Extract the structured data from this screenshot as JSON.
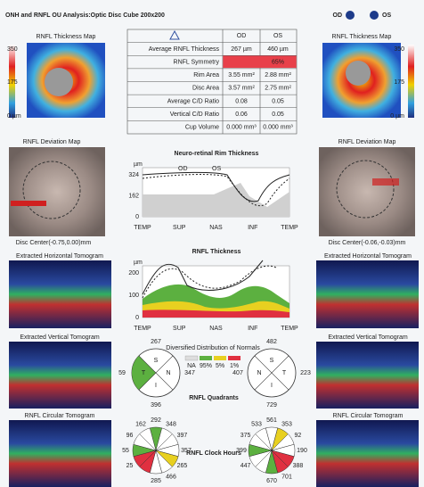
{
  "header": {
    "title": "ONH and RNFL OU Analysis:Optic Disc Cube 200x200",
    "od": "OD",
    "os": "OS"
  },
  "thickness_map": {
    "title": "RNFL Thickness Map",
    "scale": [
      "350",
      "175",
      "0 µm"
    ]
  },
  "table": {
    "columns": [
      "OD",
      "OS"
    ],
    "rows": [
      [
        "Average RNFL Thickness",
        "267 µm",
        "460 µm"
      ],
      [
        "RNFL Symmetry",
        "65%"
      ],
      [
        "Rim Area",
        "3.55 mm²",
        "2.88 mm²"
      ],
      [
        "Disc Area",
        "3.57 mm²",
        "2.75 mm²"
      ],
      [
        "Average C/D Ratio",
        "0.08",
        "0.05"
      ],
      [
        "Vertical C/D Ratio",
        "0.06",
        "0.05"
      ],
      [
        "Cup Volume",
        "0.000 mm³",
        "0.000 mm³"
      ]
    ]
  },
  "deviation_map": {
    "title": "RNFL Deviation Map",
    "od_center": "Disc Center(-0.75,0.00)mm",
    "os_center": "Disc Center(-0.06,-0.03)mm"
  },
  "rim_chart": {
    "title": "Neuro-retinal Rim Thickness",
    "unit": "µm",
    "legend": [
      "OD",
      "OS"
    ],
    "yticks": [
      "0",
      "162",
      "324"
    ],
    "xlabels": [
      "TEMP",
      "SUP",
      "NAS",
      "INF",
      "TEMP"
    ]
  },
  "rnfl_chart": {
    "title": "RNFL Thickness",
    "unit": "µm",
    "yticks": [
      "0",
      "100",
      "200"
    ],
    "xlabels": [
      "TEMP",
      "SUP",
      "NAS",
      "INF",
      "TEMP"
    ]
  },
  "normals": {
    "title": "Diversified Distribution of Normals",
    "labels": [
      "NA",
      "95%",
      "5%",
      "1%"
    ]
  },
  "tomograms": {
    "horizontal": "Extracted Horizontal Tomogram",
    "vertical": "Extracted Vertical Tomogram",
    "circular": "RNFL Circular Tomogram"
  },
  "quadrants": {
    "title": "RNFL Quadrants",
    "letters": [
      "S",
      "N",
      "I",
      "T"
    ],
    "od": [
      "267",
      "347",
      "396",
      "59"
    ],
    "os": [
      "482",
      "407",
      "729",
      "223"
    ]
  },
  "clock": {
    "title": "RNFL Clock Hours",
    "od": [
      "292",
      "348",
      "397",
      "357",
      "265",
      "466",
      "285",
      "25",
      "55",
      "96",
      "162"
    ],
    "os": [
      "561",
      "353",
      "92",
      "190",
      "388",
      "701",
      "670",
      "447",
      "399",
      "375",
      "533"
    ]
  }
}
